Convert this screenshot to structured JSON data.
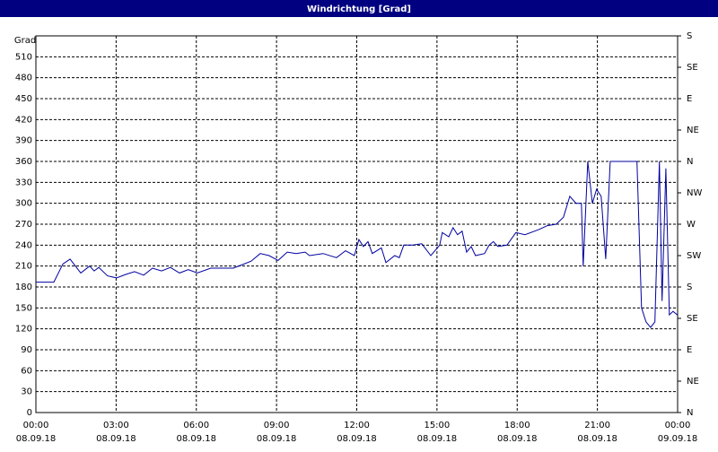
{
  "chart_data": {
    "type": "line",
    "title": "Windrichtung [Grad]",
    "y_label": "Grad",
    "x": [
      0,
      0.67,
      1.01,
      1.28,
      1.68,
      2.01,
      2.18,
      2.35,
      2.68,
      3.02,
      3.36,
      3.69,
      4.03,
      4.36,
      4.7,
      5.03,
      5.37,
      5.7,
      6.04,
      6.54,
      7.05,
      7.38,
      7.72,
      8.05,
      8.39,
      8.72,
      9.06,
      9.4,
      9.73,
      10.07,
      10.23,
      10.74,
      11.24,
      11.58,
      11.91,
      12.08,
      12.25,
      12.42,
      12.58,
      12.92,
      13.09,
      13.42,
      13.59,
      13.76,
      14.09,
      14.43,
      14.77,
      15.1,
      15.2,
      15.44,
      15.6,
      15.77,
      15.94,
      16.11,
      16.28,
      16.44,
      16.78,
      16.95,
      17.11,
      17.28,
      17.62,
      17.95,
      18.29,
      18.79,
      19.13,
      19.46,
      19.73,
      19.97,
      20.2,
      20.4,
      20.47,
      20.64,
      20.81,
      20.97,
      21.14,
      21.31,
      21.48,
      22.48,
      22.65,
      22.82,
      22.99,
      23.15,
      23.32,
      23.42,
      23.56,
      23.69,
      23.83,
      23.99
    ],
    "series": [
      {
        "name": "Windrichtung",
        "color": "#0000a0",
        "values": [
          187,
          187,
          213,
          220,
          200,
          210,
          203,
          208,
          196,
          193,
          198,
          202,
          197,
          207,
          203,
          208,
          200,
          205,
          200,
          207,
          207,
          207,
          212,
          217,
          228,
          225,
          218,
          230,
          228,
          230,
          225,
          228,
          222,
          232,
          225,
          248,
          238,
          245,
          228,
          236,
          215,
          225,
          222,
          240,
          240,
          242,
          225,
          240,
          258,
          252,
          265,
          255,
          260,
          230,
          238,
          225,
          228,
          240,
          245,
          238,
          240,
          258,
          255,
          262,
          268,
          270,
          280,
          310,
          300,
          300,
          210,
          360,
          300,
          320,
          310,
          220,
          360,
          360,
          150,
          130,
          122,
          130,
          360,
          160,
          350,
          140,
          145,
          140
        ]
      }
    ],
    "xlim": [
      0,
      24
    ],
    "xticks": [
      {
        "value": 0,
        "label": "00:00"
      },
      {
        "value": 3,
        "label": "03:00"
      },
      {
        "value": 6,
        "label": "06:00"
      },
      {
        "value": 9,
        "label": "09:00"
      },
      {
        "value": 12,
        "label": "12:00"
      },
      {
        "value": 15,
        "label": "15:00"
      },
      {
        "value": 18,
        "label": "18:00"
      },
      {
        "value": 21,
        "label": "21:00"
      },
      {
        "value": 24,
        "label": "00:00"
      }
    ],
    "x_dates": [
      "08.09.18",
      "08.09.18",
      "08.09.18",
      "08.09.18",
      "08.09.18",
      "08.09.18",
      "08.09.18",
      "08.09.18",
      "09.09.18"
    ],
    "ylim": [
      0,
      540
    ],
    "yticks": [
      0,
      30,
      60,
      90,
      120,
      150,
      180,
      210,
      240,
      270,
      300,
      330,
      360,
      390,
      420,
      450,
      480,
      510
    ],
    "y2lim": [
      0,
      540
    ],
    "y2ticks": [
      {
        "value": 0,
        "label": "N"
      },
      {
        "value": 45,
        "label": "NE"
      },
      {
        "value": 90,
        "label": "E"
      },
      {
        "value": 135,
        "label": "SE"
      },
      {
        "value": 180,
        "label": "S"
      },
      {
        "value": 225,
        "label": "SW"
      },
      {
        "value": 270,
        "label": "W"
      },
      {
        "value": 315,
        "label": "NW"
      },
      {
        "value": 360,
        "label": "N"
      },
      {
        "value": 405,
        "label": "NE"
      },
      {
        "value": 450,
        "label": "E"
      },
      {
        "value": 495,
        "label": "SE"
      },
      {
        "value": 540,
        "label": "S"
      }
    ],
    "grid": true
  }
}
